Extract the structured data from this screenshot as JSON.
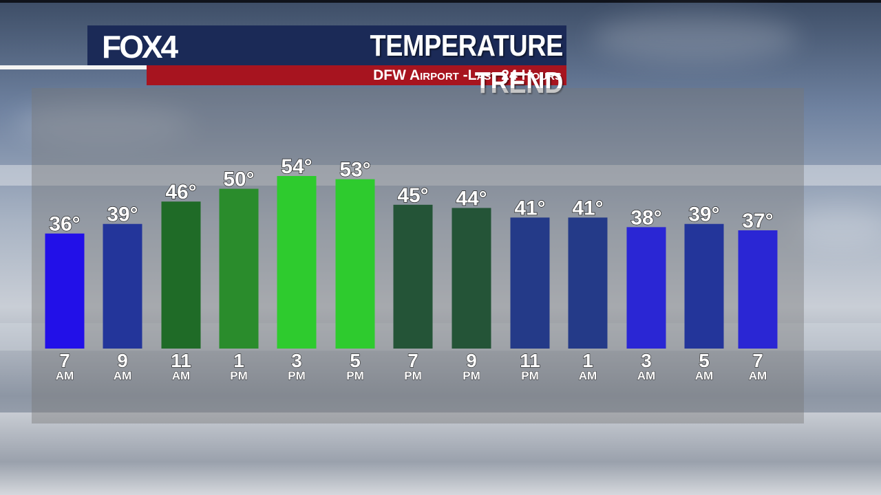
{
  "header": {
    "logo": "FOX4",
    "title": "TEMPERATURE TREND",
    "subtitle": "DFW Airport -Last 24 Hours"
  },
  "colors": {
    "header_navy": "#1b2a57",
    "header_red": "#a7141f",
    "cold": "#2210e8",
    "cool": "#23359a",
    "mild_dark": "#1f6b27",
    "mild": "#2a8c2c",
    "warm": "#2ecb2e",
    "evening": "#245437",
    "night": "#243a88",
    "night_bright": "#2a26d4"
  },
  "chart_data": {
    "type": "bar",
    "categories": [
      "7 AM",
      "9 AM",
      "11 AM",
      "1 PM",
      "3 PM",
      "5 PM",
      "7 PM",
      "9 PM",
      "11 PM",
      "1 AM",
      "3 AM",
      "5 AM",
      "7 AM"
    ],
    "hours": [
      "7",
      "9",
      "11",
      "1",
      "3",
      "5",
      "7",
      "9",
      "11",
      "1",
      "3",
      "5",
      "7"
    ],
    "periods": [
      "AM",
      "AM",
      "AM",
      "PM",
      "PM",
      "PM",
      "PM",
      "PM",
      "PM",
      "AM",
      "AM",
      "AM",
      "AM"
    ],
    "values": [
      36,
      39,
      46,
      50,
      54,
      53,
      45,
      44,
      41,
      41,
      38,
      39,
      37
    ],
    "value_labels": [
      "36°",
      "39°",
      "46°",
      "50°",
      "54°",
      "53°",
      "45°",
      "44°",
      "41°",
      "41°",
      "38°",
      "39°",
      "37°"
    ],
    "bar_colors": [
      "#2210e8",
      "#23359a",
      "#1f6b27",
      "#2a8c2c",
      "#2ecb2e",
      "#2ecb2e",
      "#245437",
      "#245437",
      "#243a88",
      "#243a88",
      "#2a26d4",
      "#23359a",
      "#2a26d4"
    ],
    "unit": "°F",
    "ylim": [
      0,
      54
    ],
    "grid": false,
    "legend": "none"
  }
}
